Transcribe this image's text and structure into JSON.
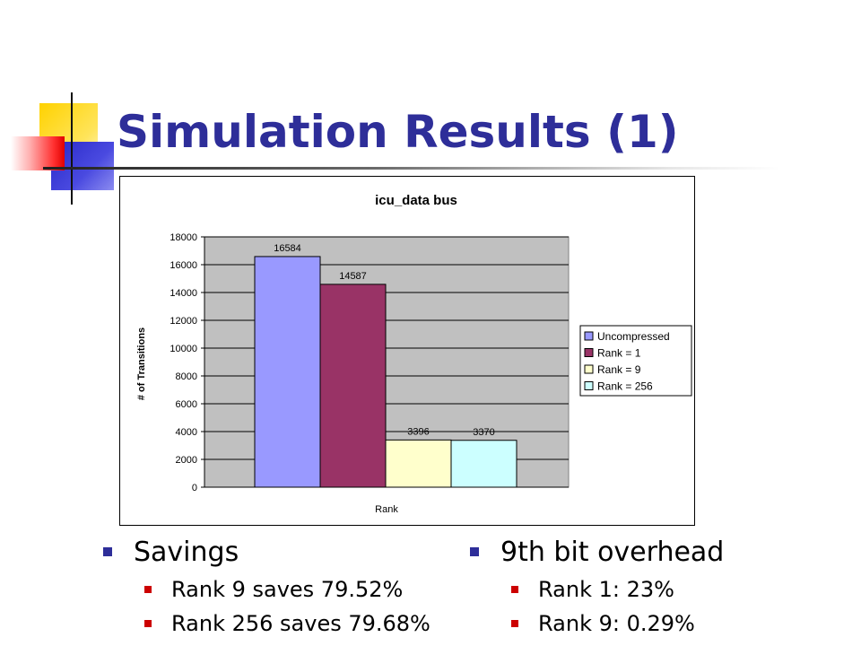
{
  "slide": {
    "title": "Simulation Results (1)"
  },
  "colors": {
    "title": "#2E2E99",
    "bullet_level1": "#2E2E99",
    "bullet_level2": "#CC0000"
  },
  "bullets": {
    "left": {
      "heading": "Savings",
      "items": [
        "Rank 9 saves 79.52%",
        "Rank 256 saves 79.68%"
      ]
    },
    "right": {
      "heading": "9th bit overhead",
      "items": [
        "Rank 1: 23%",
        "Rank 9: 0.29%"
      ]
    }
  },
  "chart_data": {
    "type": "bar",
    "title": "icu_data bus",
    "xlabel": "Rank",
    "ylabel": "# of Transitions",
    "ylim": [
      0,
      18000
    ],
    "yticks": [
      0,
      2000,
      4000,
      6000,
      8000,
      10000,
      12000,
      14000,
      16000,
      18000
    ],
    "grid": true,
    "plot_background": "#C0C0C0",
    "legend_position": "right",
    "series": [
      {
        "name": "Uncompressed",
        "values": [
          16584
        ],
        "color": "#9999FF"
      },
      {
        "name": "Rank = 1",
        "values": [
          14587
        ],
        "color": "#993366"
      },
      {
        "name": "Rank = 9",
        "values": [
          3396
        ],
        "color": "#FFFFCC"
      },
      {
        "name": "Rank = 256",
        "values": [
          3370
        ],
        "color": "#CCFFFF"
      }
    ]
  }
}
